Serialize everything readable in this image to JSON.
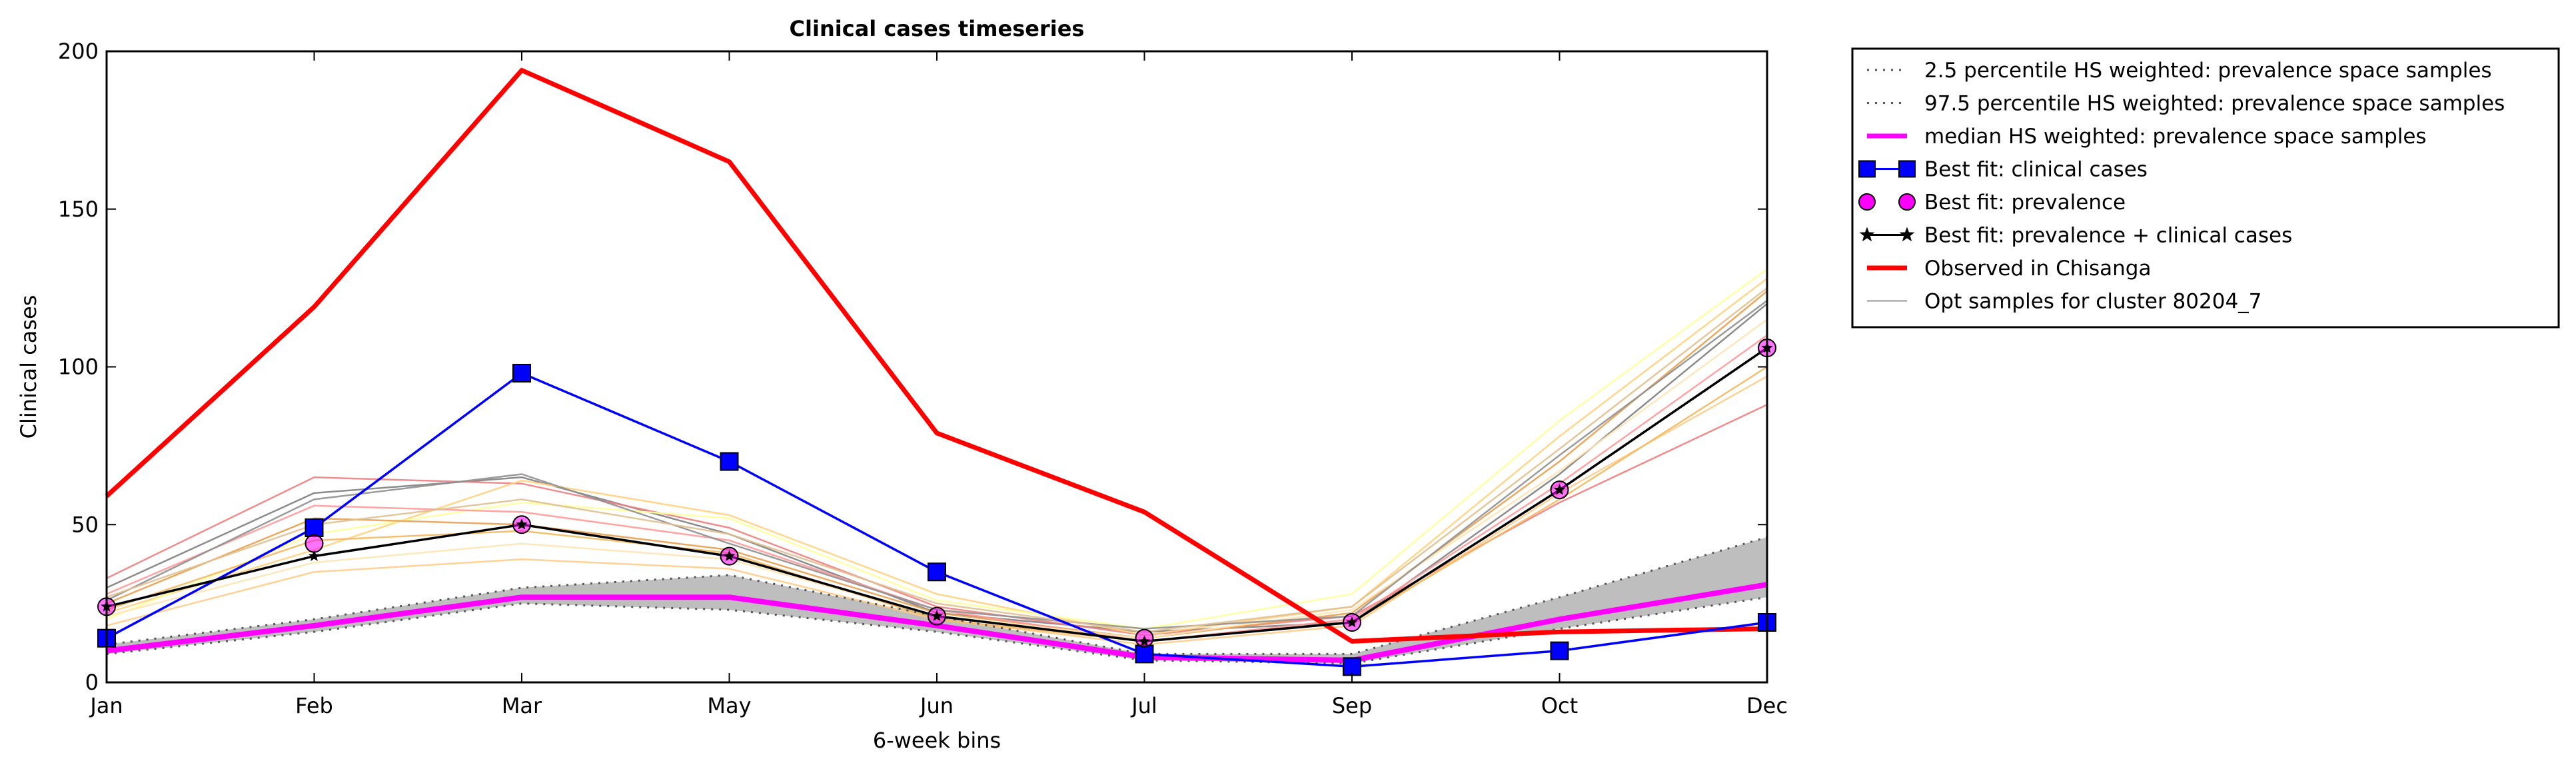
{
  "chart_data": {
    "type": "line",
    "title": "Clinical cases timeseries",
    "xlabel": "6-week bins",
    "ylabel": "Clinical cases",
    "categories": [
      "Jan",
      "Feb",
      "Mar",
      "May",
      "Jun",
      "Jul",
      "Sep",
      "Oct",
      "Dec"
    ],
    "ylim": [
      0,
      200
    ],
    "yticks": [
      "0",
      "50",
      "100",
      "150",
      "200"
    ],
    "grid": false,
    "legend_position": "outside-top-right",
    "band": {
      "lower": [
        9,
        16,
        25,
        23,
        16,
        7,
        6,
        17,
        27
      ],
      "upper": [
        12,
        20,
        30,
        34,
        21,
        9,
        9,
        27,
        46
      ],
      "color": "#bebebe"
    },
    "series": [
      {
        "name": "2.5 percentile HS weighted: prevalence space samples",
        "style": "dotted",
        "color": "#555555",
        "values": [
          9,
          16,
          25,
          23,
          16,
          7,
          6,
          17,
          27
        ]
      },
      {
        "name": "97.5 percentile HS weighted: prevalence space samples",
        "style": "dotted",
        "color": "#555555",
        "values": [
          12,
          20,
          30,
          34,
          21,
          9,
          9,
          27,
          46
        ]
      },
      {
        "name": "median HS weighted: prevalence space samples",
        "style": "solid",
        "color": "#ff00ff",
        "values": [
          10,
          18,
          27,
          27,
          18,
          8,
          7,
          20,
          31
        ]
      },
      {
        "name": "Best fit: clinical cases",
        "style": "solid-square-marker",
        "color": "#0000ff",
        "values": [
          14,
          49,
          98,
          70,
          35,
          9,
          5,
          10,
          19
        ]
      },
      {
        "name": "Best fit: prevalence",
        "style": "circle-marker",
        "color": "#ff00ff",
        "values": [
          24,
          44,
          50,
          40,
          21,
          14,
          19,
          61,
          106
        ]
      },
      {
        "name": "Best fit: prevalence + clinical cases",
        "style": "solid-star-marker",
        "color": "#000000",
        "values": [
          24,
          40,
          50,
          40,
          21,
          13,
          19,
          61,
          106
        ]
      },
      {
        "name": "Observed in Chisanga",
        "style": "thick-solid",
        "color": "#ff0000",
        "values": [
          59,
          119,
          194,
          165,
          79,
          54,
          13,
          16,
          17
        ]
      }
    ],
    "samples": {
      "name": "Opt samples for cluster 80204_7",
      "legend_color": "#999999",
      "lines": [
        {
          "color": "#808080",
          "values": [
            30,
            60,
            65,
            47,
            22,
            16,
            19,
            66,
            120
          ]
        },
        {
          "color": "#f08080",
          "values": [
            33,
            65,
            63,
            49,
            24,
            15,
            21,
            57,
            88
          ]
        },
        {
          "color": "#ffd27f",
          "values": [
            22,
            42,
            64,
            53,
            28,
            15,
            24,
            78,
            128
          ]
        },
        {
          "color": "#ffff99",
          "values": [
            20,
            47,
            57,
            52,
            26,
            17,
            28,
            83,
            131
          ]
        },
        {
          "color": "#e8a050",
          "values": [
            25,
            52,
            50,
            42,
            22,
            14,
            22,
            70,
            124
          ]
        },
        {
          "color": "#ff9999",
          "values": [
            28,
            56,
            54,
            45,
            23,
            13,
            20,
            63,
            110
          ]
        },
        {
          "color": "#ffcc88",
          "values": [
            18,
            35,
            39,
            36,
            20,
            12,
            18,
            60,
            97
          ]
        },
        {
          "color": "#ffe4b5",
          "values": [
            21,
            38,
            44,
            39,
            21,
            14,
            23,
            67,
            115
          ]
        },
        {
          "color": "#909090",
          "values": [
            26,
            58,
            66,
            44,
            23,
            17,
            21,
            72,
            121
          ]
        },
        {
          "color": "#f4b860",
          "values": [
            23,
            45,
            48,
            41,
            20,
            13,
            19,
            58,
            100
          ]
        },
        {
          "color": "#e0c090",
          "values": [
            27,
            50,
            58,
            47,
            25,
            16,
            24,
            74,
            125
          ]
        }
      ]
    }
  }
}
